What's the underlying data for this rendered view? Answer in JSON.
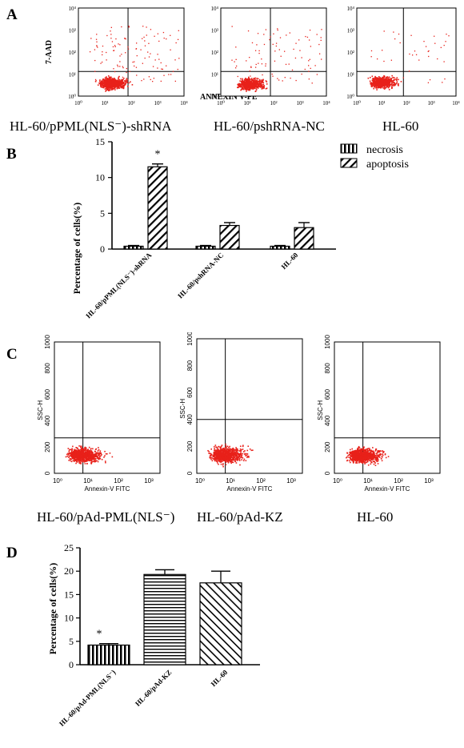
{
  "panels": {
    "A": "A",
    "B": "B",
    "C": "C",
    "D": "D"
  },
  "panelA": {
    "y_axis_title": "7-AAD",
    "x_axis_title": "ANNEXIN V-PE",
    "tick_labels": [
      "10⁰",
      "10¹",
      "10²",
      "10³",
      "10⁴"
    ],
    "captions": [
      "HL-60/pPML(NLS⁻)-shRNA",
      "HL-60/pshRNA-NC",
      "HL-60"
    ]
  },
  "panelC": {
    "y_axis_title": "SSC-H",
    "x_axis_title": "Annexin-V FITC",
    "y_ticks": [
      "0",
      "200",
      "400",
      "600",
      "800",
      "1000"
    ],
    "x_ticks": [
      "10⁰",
      "10¹",
      "10²",
      "10³"
    ],
    "captions": [
      "HL-60/pAd-PML(NLS⁻)",
      "HL-60/pAd-KZ",
      "HL-60"
    ]
  },
  "colors": {
    "dots": "#e8211a",
    "axis": "#000000"
  },
  "chart_data": [
    {
      "id": "B",
      "type": "bar",
      "ylabel": "Percentage of cells(%)",
      "xlabel": "",
      "ylim": [
        0,
        15
      ],
      "yticks": [
        "0",
        "5",
        "10",
        "15"
      ],
      "categories": [
        "HL-60/pPML(NLS⁻)-shRNA",
        "HL-60/pshRNA-NC",
        "HL-60"
      ],
      "series": [
        {
          "name": "necrosis",
          "values": [
            0.4,
            0.4,
            0.4
          ],
          "errors": [
            0.1,
            0.1,
            0.1
          ]
        },
        {
          "name": "apoptosis",
          "values": [
            11.5,
            3.3,
            3.0
          ],
          "errors": [
            0.4,
            0.4,
            0.7
          ]
        }
      ],
      "annotations": [
        {
          "category": 0,
          "series": 1,
          "text": "*"
        }
      ],
      "legend_position": "top-right"
    },
    {
      "id": "D",
      "type": "bar",
      "ylabel": "Percentage of cells(%)",
      "xlabel": "",
      "ylim": [
        0,
        25
      ],
      "yticks": [
        "0",
        "5",
        "10",
        "15",
        "20",
        "25"
      ],
      "categories": [
        "HL-60/pAd-PML(NLS⁻)",
        "HL-60/pAd-KZ",
        "HL-60"
      ],
      "values": [
        4.2,
        19.3,
        17.5
      ],
      "errors": [
        0.3,
        1.0,
        2.5
      ],
      "annotations": [
        {
          "category": 0,
          "text": "*"
        }
      ]
    }
  ]
}
